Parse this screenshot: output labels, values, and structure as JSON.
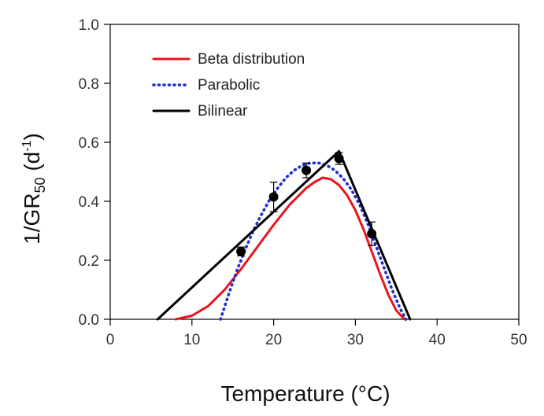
{
  "chart_data": {
    "type": "line",
    "xlabel": "Temperature (°C)",
    "ylabel_main": "1/GR",
    "ylabel_sub": "50",
    "ylabel_paren_open": " (d",
    "ylabel_sup": "-1",
    "ylabel_paren_close": ")",
    "xlim": [
      0,
      50
    ],
    "ylim": [
      0,
      1.0
    ],
    "xticks": [
      0,
      10,
      20,
      30,
      40,
      50
    ],
    "yticks": [
      "0.0",
      "0.2",
      "0.4",
      "0.6",
      "0.8",
      "1.0"
    ],
    "yticks_values": [
      0,
      0.2,
      0.4,
      0.6,
      0.8,
      1.0
    ],
    "legend_position": "top-left",
    "series": [
      {
        "name": "Beta distribution",
        "style": "solid",
        "color": "#e8141c",
        "x": [
          8,
          10,
          12,
          14,
          16,
          18,
          20,
          22,
          24,
          25,
          26,
          27,
          28,
          29,
          30,
          31,
          32,
          33,
          34,
          35,
          36
        ],
        "y": [
          0,
          0.012,
          0.045,
          0.1,
          0.17,
          0.245,
          0.32,
          0.39,
          0.445,
          0.465,
          0.48,
          0.475,
          0.455,
          0.42,
          0.37,
          0.305,
          0.23,
          0.155,
          0.085,
          0.03,
          0
        ]
      },
      {
        "name": "Parabolic",
        "style": "dotted",
        "color": "#1f2fd0",
        "x": [
          13.5,
          14.5,
          15.5,
          16.5,
          17.5,
          18.5,
          19.5,
          20.5,
          21.5,
          22.5,
          23.5,
          24.5,
          25.5,
          26.5,
          27.5,
          28.5,
          29.5,
          30.5,
          31.5,
          32.5,
          33.5,
          34.5,
          35.5,
          36.2
        ],
        "y": [
          0,
          0.085,
          0.165,
          0.235,
          0.3,
          0.355,
          0.405,
          0.445,
          0.48,
          0.505,
          0.522,
          0.53,
          0.53,
          0.522,
          0.505,
          0.478,
          0.44,
          0.39,
          0.325,
          0.25,
          0.175,
          0.1,
          0.035,
          0
        ]
      },
      {
        "name": "Bilinear",
        "style": "solid",
        "color": "#000000",
        "x": [
          5.8,
          28,
          36.7
        ],
        "y": [
          0,
          0.57,
          0
        ]
      }
    ],
    "observed": {
      "x": [
        16,
        20,
        24,
        28,
        32
      ],
      "y": [
        0.23,
        0.415,
        0.505,
        0.545,
        0.29
      ],
      "err": [
        0.015,
        0.05,
        0.025,
        0.02,
        0.04
      ]
    }
  }
}
